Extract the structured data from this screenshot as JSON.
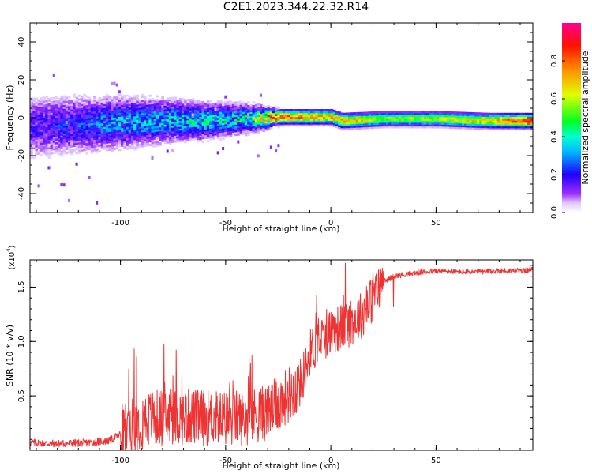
{
  "title": "C2E1.2023.344.22.32.R14",
  "colors": {
    "signal_line": "#ee3333",
    "colormap": [
      "#ffffff",
      "#e9d6ff",
      "#7a00ff",
      "#0000ff",
      "#00ffff",
      "#00ff00",
      "#ffff00",
      "#ff8000",
      "#ff0000",
      "#ff00a0"
    ]
  },
  "chart_data": [
    {
      "type": "heatmap",
      "title": "",
      "xlabel": "Height of straight line (km)",
      "ylabel": "Frequency (Hz)",
      "xlim": [
        -143,
        96
      ],
      "ylim": [
        -50,
        50
      ],
      "xticks": [
        -100,
        -50,
        0,
        50
      ],
      "xtick_labels": [
        "-100",
        "-50",
        "0",
        "50"
      ],
      "yticks": [
        -40,
        -20,
        0,
        20,
        40
      ],
      "ytick_labels": [
        "-40",
        "-20",
        "0",
        "20",
        "40"
      ],
      "colorbar": {
        "label": "Normalized spectral amplitude",
        "range": [
          0,
          1
        ],
        "ticks": [
          0.0,
          0.2,
          0.4,
          0.6,
          0.8
        ],
        "tick_labels": [
          "0.0",
          "0.2",
          "0.4",
          "0.6",
          "0.8"
        ]
      },
      "ridge": [
        {
          "x": -140,
          "freq": -5,
          "spread": 9,
          "amp": 0.15
        },
        {
          "x": -120,
          "freq": -4,
          "spread": 8,
          "amp": 0.2
        },
        {
          "x": -100,
          "freq": -3,
          "spread": 7,
          "amp": 0.28
        },
        {
          "x": -80,
          "freq": -2,
          "spread": 6,
          "amp": 0.3
        },
        {
          "x": -60,
          "freq": -2,
          "spread": 5,
          "amp": 0.32
        },
        {
          "x": -40,
          "freq": -1,
          "spread": 4,
          "amp": 0.35
        },
        {
          "x": -25,
          "freq": 0,
          "spread": 2,
          "amp": 0.8
        },
        {
          "x": 0,
          "freq": 0,
          "spread": 2,
          "amp": 0.7
        },
        {
          "x": 5,
          "freq": -2,
          "spread": 2,
          "amp": 0.75
        },
        {
          "x": 25,
          "freq": -1,
          "spread": 2,
          "amp": 0.55
        },
        {
          "x": 50,
          "freq": -1,
          "spread": 2,
          "amp": 0.6
        },
        {
          "x": 75,
          "freq": -2,
          "spread": 2,
          "amp": 0.7
        },
        {
          "x": 95,
          "freq": -2,
          "spread": 2,
          "amp": 0.95
        }
      ]
    },
    {
      "type": "line",
      "title": "",
      "xlabel": "Height of straight line (km)",
      "ylabel": "SNR (10 * v/v)",
      "scale_label": "(x10",
      "scale_exponent": "4",
      "scale_close": ")",
      "xlim": [
        -143,
        96
      ],
      "ylim": [
        0,
        17500
      ],
      "xticks": [
        -100,
        -50,
        0,
        50
      ],
      "xtick_labels": [
        "-100",
        "-50",
        "0",
        "50"
      ],
      "yticks": [
        5000,
        10000,
        15000
      ],
      "ytick_labels": [
        "0.5",
        "1.0",
        "1.5"
      ],
      "series": [
        {
          "x": [
            -143,
            -130,
            -115,
            -105,
            -100,
            -95,
            -90,
            -85,
            -80,
            -70,
            -60,
            -50,
            -40,
            -30,
            -25,
            -20,
            -15,
            -12,
            -10,
            -5,
            0,
            5,
            10,
            15,
            20,
            25,
            30,
            40,
            50,
            60,
            70,
            80,
            90,
            96
          ],
          "y": [
            700,
            600,
            700,
            900,
            1500,
            2200,
            2700,
            3000,
            3000,
            3100,
            3000,
            2900,
            3000,
            3500,
            4200,
            5200,
            6000,
            7500,
            9000,
            10200,
            11000,
            11300,
            11800,
            12500,
            14000,
            15500,
            16000,
            16300,
            16500,
            16400,
            16400,
            16500,
            16500,
            16600
          ]
        }
      ]
    }
  ]
}
